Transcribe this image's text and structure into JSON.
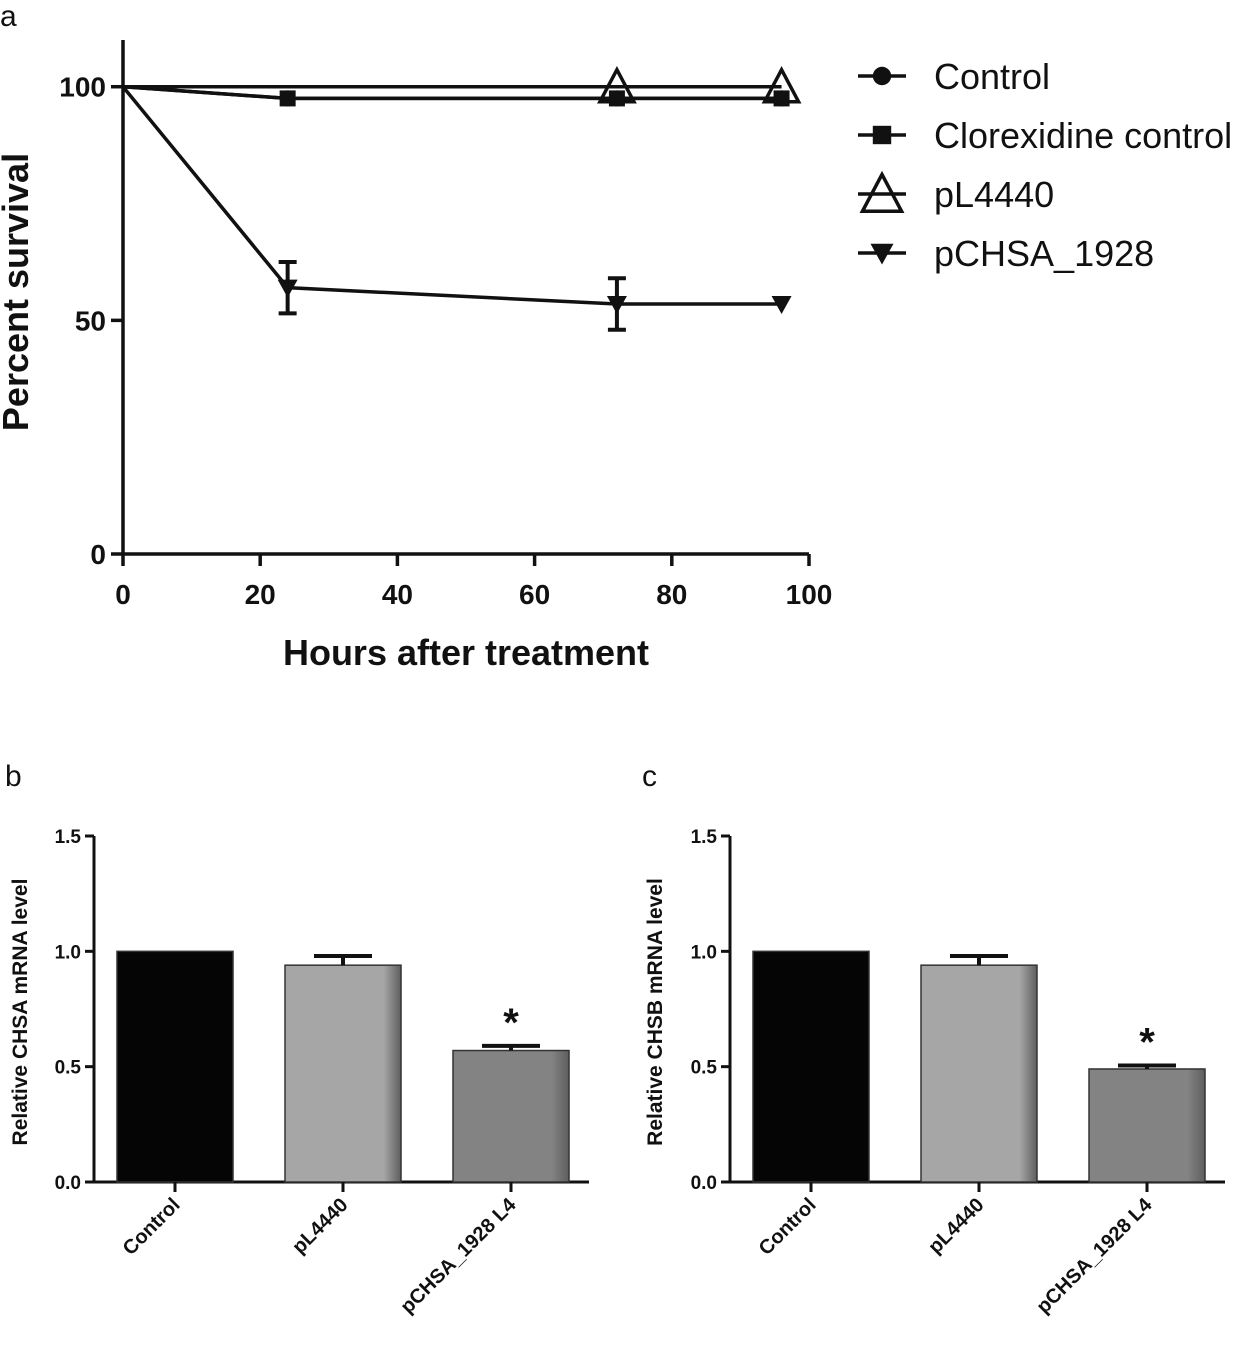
{
  "chart_data": [
    {
      "panel": "a",
      "type": "line",
      "xlabel": "Hours after treatment",
      "ylabel": "Percent survival",
      "xlim": [
        0,
        100
      ],
      "ylim": [
        0,
        110
      ],
      "xticks": [
        "0",
        "20",
        "40",
        "60",
        "80",
        "100"
      ],
      "yticks": [
        "0",
        "50",
        "100"
      ],
      "legend_position": "right",
      "series": [
        {
          "name": "Control",
          "marker": "circle",
          "x": [
            0,
            24,
            72,
            96
          ],
          "y": [
            100,
            97.5,
            97.5,
            97.5
          ],
          "err": [
            0,
            0,
            0,
            0
          ]
        },
        {
          "name": "Clorexidine control",
          "marker": "square",
          "x": [
            0,
            24,
            72,
            96
          ],
          "y": [
            100,
            97.5,
            97.5,
            97.5
          ],
          "err": [
            0,
            0,
            0,
            0
          ]
        },
        {
          "name": "pL4440",
          "marker": "open-triangle",
          "x": [
            0,
            72,
            96
          ],
          "y": [
            100,
            100,
            100
          ],
          "err": [
            0,
            0,
            0
          ]
        },
        {
          "name": "pCHSA_1928",
          "marker": "down-triangle",
          "x": [
            0,
            24,
            72,
            96
          ],
          "y": [
            100,
            57,
            53.5,
            53.5
          ],
          "err": [
            0,
            5.5,
            5.5,
            0
          ]
        }
      ]
    },
    {
      "panel": "b",
      "type": "bar",
      "ylabel": "Relative CHSA mRNA level",
      "ylim": [
        0,
        1.5
      ],
      "yticks": [
        "0.0",
        "0.5",
        "1.0",
        "1.5"
      ],
      "categories": [
        "Control",
        "pL4440",
        "pCHSA_1928 L4"
      ],
      "values": [
        1.0,
        0.94,
        0.57
      ],
      "errors": [
        0,
        0.04,
        0.02
      ],
      "significance": [
        "",
        "",
        "*"
      ],
      "colors": [
        "#050505",
        "#a6a6a6",
        "#838383"
      ]
    },
    {
      "panel": "c",
      "type": "bar",
      "ylabel": "Relative CHSB mRNA level",
      "ylim": [
        0,
        1.5
      ],
      "yticks": [
        "0.0",
        "0.5",
        "1.0",
        "1.5"
      ],
      "categories": [
        "Control",
        "pL4440",
        "pCHSA_1928 L4"
      ],
      "values": [
        1.0,
        0.94,
        0.49
      ],
      "errors": [
        0,
        0.04,
        0.015
      ],
      "significance": [
        "",
        "",
        "*"
      ],
      "colors": [
        "#050505",
        "#a6a6a6",
        "#838383"
      ]
    }
  ]
}
